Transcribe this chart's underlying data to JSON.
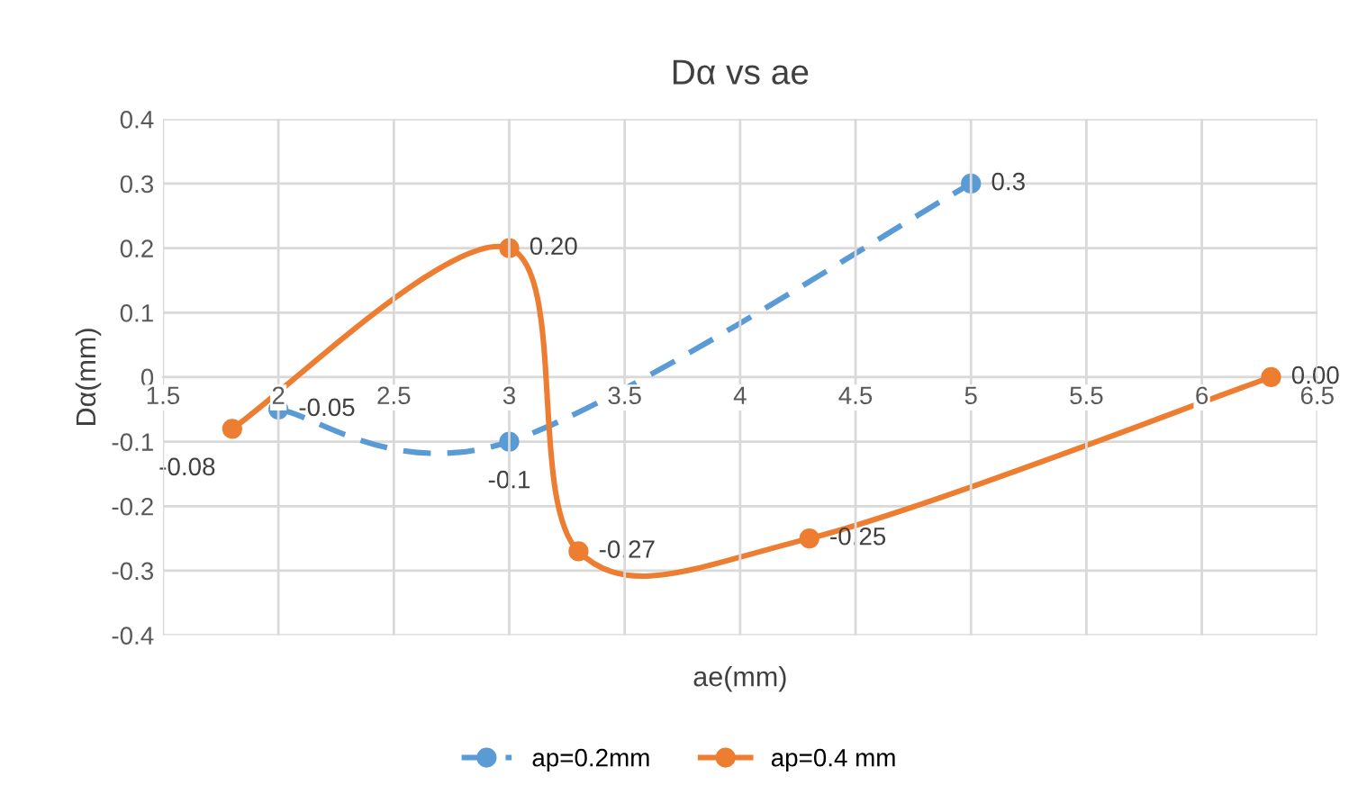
{
  "chart_data": {
    "type": "line",
    "title": "Dα vs ae",
    "xlabel": "ae(mm)",
    "ylabel": "Dα(mm)",
    "xlim": [
      1.5,
      6.5
    ],
    "xticks": [
      1.5,
      2,
      2.5,
      3,
      3.5,
      4,
      4.5,
      5,
      5.5,
      6,
      6.5
    ],
    "ylim": [
      -0.4,
      0.4
    ],
    "yticks": [
      -0.4,
      -0.3,
      -0.2,
      -0.1,
      0,
      0.1,
      0.2,
      0.3,
      0.4
    ],
    "grid": true,
    "legend": "bottom",
    "marker": "circle",
    "series": [
      {
        "name": "ap=0.2mm",
        "color": "#5b9bd5",
        "line_style": "dashed",
        "x": [
          2,
          3,
          5
        ],
        "values": [
          -0.05,
          -0.1,
          0.3
        ],
        "value_labels": [
          "-0.05",
          "-0.1",
          "0.3"
        ]
      },
      {
        "name": "ap=0.4 mm",
        "color": "#ed7d31",
        "line_style": "solid",
        "x": [
          1.8,
          3,
          3.3,
          4.3,
          6.3
        ],
        "values": [
          -0.08,
          0.2,
          -0.27,
          -0.25,
          0.0
        ],
        "value_labels": [
          "-0.08",
          "0.20",
          "-0.27",
          "-0.25",
          "0.00"
        ]
      }
    ]
  }
}
